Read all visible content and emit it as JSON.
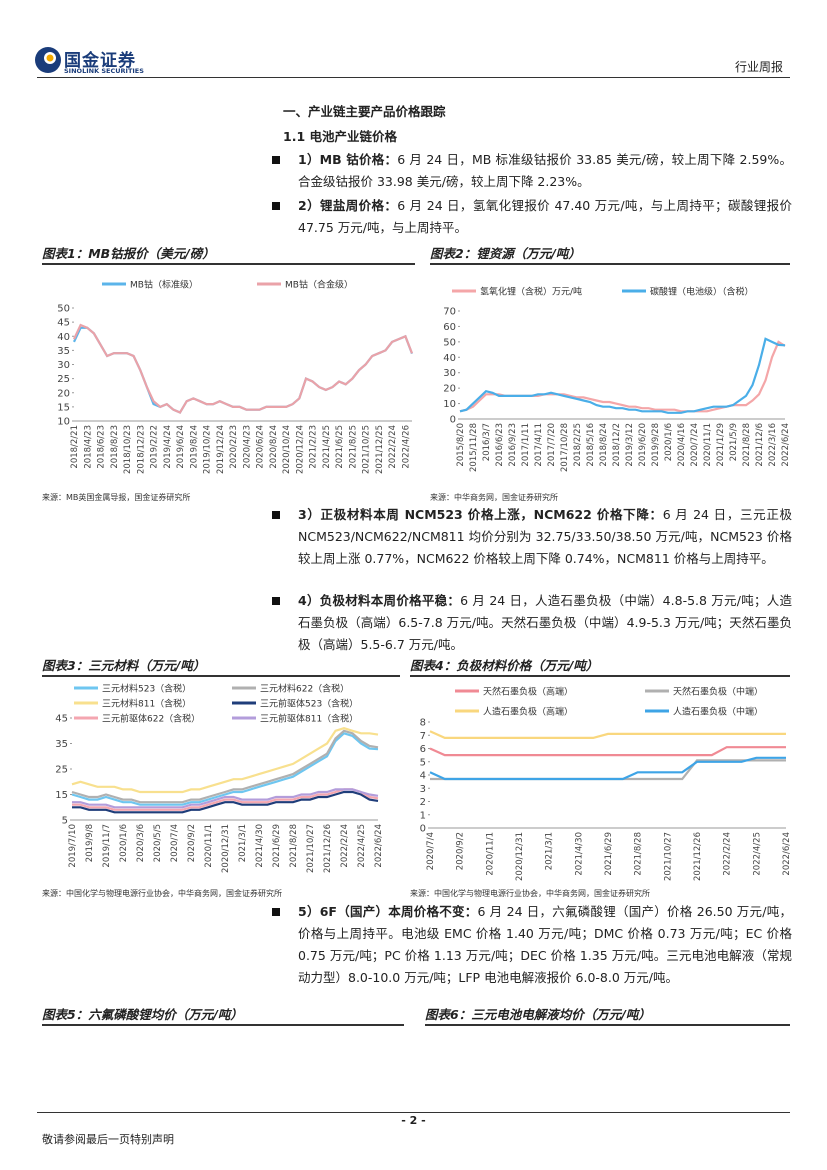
{
  "header": {
    "brand": "国金证券",
    "brand_en": "SINOLINK SECURITIES",
    "report_type": "行业周报"
  },
  "section_title": "一、产业链主要产品价格跟踪",
  "subsection_title": "1.1 电池产业链价格",
  "bullets": [
    {
      "lead": "1）MB 钴价格：",
      "text": "6 月 24 日，MB 标准级钴报价 33.85 美元/磅，较上周下降 2.59%。合金级钴报价 33.98 美元/磅，较上周下降 2.23%。"
    },
    {
      "lead": "2）锂盐周价格：",
      "text": "6 月 24 日，氢氧化锂报价 47.40 万元/吨，与上周持平；碳酸锂报价 47.75 万元/吨，与上周持平。"
    },
    {
      "lead": "3）正极材料本周 NCM523 价格上涨，NCM622 价格下降：",
      "text": "6 月 24 日，三元正极 NCM523/NCM622/NCM811 均价分别为 32.75/33.50/38.50 万元/吨，NCM523 价格较上周上涨 0.77%，NCM622 价格较上周下降 0.74%，NCM811 价格与上周持平。"
    },
    {
      "lead": "4）负极材料本周价格平稳：",
      "text": "6 月 24 日，人造石墨负极（中端）4.8-5.8 万元/吨；人造石墨负极（高端）6.5-7.8 万元/吨。天然石墨负极（中端）4.9-5.3 万元/吨；天然石墨负极（高端）5.5-6.7 万元/吨。"
    },
    {
      "lead": "5）6F（国产）本周价格不变：",
      "text": "6 月 24 日，六氟磷酸锂（国产）价格 26.50 万元/吨，价格与上周持平。电池级 EMC 价格 1.40 万元/吨；DMC 价格 0.73 万元/吨；EC 价格 0.75 万元/吨；PC 价格 1.13 万元/吨；DEC 价格 1.35 万元/吨。三元电池电解液（常规动力型）8.0-10.0 万元/吨；LFP 电池电解液报价 6.0-8.0 万元/吨。"
    }
  ],
  "chart_data": [
    {
      "type": "line",
      "title": "图表1：MB钴报价（美元/磅）",
      "source": "来源：MB英国金属导报，国金证券研究所",
      "categories": [
        "2018/2/21",
        null,
        "2018/4/23",
        null,
        "2018/6/23",
        null,
        "2018/8/23",
        null,
        "2018/10/23",
        null,
        "2018/12/23",
        null,
        "2019/2/22",
        null,
        "2019/4/24",
        null,
        "2019/6/24",
        null,
        "2019/8/24",
        null,
        "2019/10/24",
        null,
        "2019/12/24",
        null,
        "2020/2/23",
        null,
        "2020/4/23",
        null,
        "2020/6/24",
        null,
        "2020/8/24",
        null,
        "2020/10/24",
        null,
        "2020/12/24",
        null,
        "2021/2/23",
        null,
        "2021/4/25",
        null,
        "2021/6/25",
        null,
        "2021/8/25",
        null,
        "2021/10/25",
        null,
        "2021/12/25",
        null,
        "2022/2/24",
        null,
        "2022/4/26",
        null
      ],
      "series": [
        {
          "name": "MB钴（标准级）",
          "color": "#5bb4ea",
          "values": [
            38,
            43,
            43,
            41,
            37,
            33,
            34,
            34,
            34,
            33,
            28,
            22,
            16,
            15,
            16,
            14,
            13,
            17,
            18,
            17,
            16,
            16,
            17,
            16,
            15,
            15,
            14,
            14,
            14,
            15,
            15,
            15,
            15,
            16,
            18,
            25,
            24,
            22,
            21,
            22,
            24,
            23,
            25,
            28,
            30,
            33,
            34,
            35,
            38,
            39,
            40,
            33.85
          ]
        },
        {
          "name": "MB钴（合金级）",
          "color": "#eaa2a8",
          "values": [
            39,
            44,
            43,
            41,
            37,
            33,
            34,
            34,
            34,
            33,
            28,
            22,
            17,
            15,
            16,
            14,
            13,
            17,
            18,
            17,
            16,
            16,
            17,
            16,
            15,
            15,
            14,
            14,
            14,
            15,
            15,
            15,
            15,
            16,
            18,
            25,
            24,
            22,
            21,
            22,
            24,
            23,
            25,
            28,
            30,
            33,
            34,
            35,
            38,
            39,
            40,
            33.98
          ]
        }
      ],
      "ylim": [
        10,
        50
      ],
      "yticks": [
        10,
        15,
        20,
        25,
        30,
        35,
        40,
        45,
        50
      ]
    },
    {
      "type": "line",
      "title": "图表2：锂资源（万元/吨）",
      "source": "来源：中华商务网，国金证券研究所",
      "categories": [
        "2015/8/20",
        null,
        "2015/11/28",
        null,
        "2016/3/7",
        null,
        "2016/6/23",
        null,
        "2016/9/23",
        null,
        "2017/1/11",
        null,
        "2017/4/11",
        null,
        "2017/7/20",
        null,
        "2017/10/28",
        null,
        "2018/2/25",
        null,
        "2018/5/16",
        null,
        "2018/8/24",
        null,
        "2018/12/2",
        null,
        "2019/3/12",
        null,
        "2019/6/20",
        null,
        "2019/9/28",
        null,
        "2020/1/6",
        null,
        "2020/4/16",
        null,
        "2020/7/24",
        null,
        "2020/11/1",
        null,
        "2021/1/29",
        null,
        "2021/5/9",
        null,
        "2021/8/28",
        null,
        "2021/12/6",
        null,
        "2022/3/16",
        null,
        "2022/6/24"
      ],
      "series": [
        {
          "name": "氢氧化锂（含税）万元/吨",
          "color": "#f4a6a8",
          "values": [
            5,
            6,
            8,
            12,
            16,
            16,
            16,
            15,
            15,
            15,
            15,
            15,
            15,
            16,
            16,
            16,
            16,
            15,
            14,
            14,
            13,
            12,
            11,
            11,
            10,
            9,
            8,
            8,
            7,
            7,
            6,
            6,
            6,
            6,
            5,
            5,
            5,
            5,
            5,
            6,
            7,
            8,
            9,
            9,
            9,
            12,
            16,
            25,
            40,
            50,
            47.4
          ]
        },
        {
          "name": "碳酸锂（电池级）（含税）",
          "color": "#4aaee8",
          "values": [
            5,
            6,
            10,
            14,
            18,
            17,
            15,
            15,
            15,
            15,
            15,
            15,
            16,
            16,
            17,
            16,
            15,
            14,
            13,
            12,
            11,
            9,
            8,
            8,
            7,
            7,
            6,
            6,
            5,
            5,
            5,
            5,
            4,
            4,
            4,
            5,
            5,
            6,
            7,
            8,
            8,
            8,
            9,
            12,
            15,
            22,
            35,
            52,
            50,
            48,
            47.75
          ]
        }
      ],
      "ylim": [
        0,
        70
      ],
      "yticks": [
        0,
        10,
        20,
        30,
        40,
        50,
        60,
        70
      ]
    },
    {
      "type": "line",
      "title": "图表3：三元材料（万元/吨）",
      "source": "来源：中国化学与物理电源行业协会，中华商务网，国金证券研究所",
      "categories": [
        "2019/7/10",
        null,
        "2019/9/8",
        null,
        "2019/11/7",
        null,
        "2020/1/6",
        null,
        "2020/3/6",
        null,
        "2020/5/5",
        null,
        "2020/7/4",
        null,
        "2020/9/2",
        null,
        "2020/11/1",
        null,
        "2020/12/31",
        null,
        "2021/3/1",
        null,
        "2021/4/30",
        null,
        "2021/6/29",
        null,
        "2021/8/28",
        null,
        "2021/10/27",
        null,
        "2021/12/26",
        null,
        "2022/2/24",
        null,
        "2022/4/25",
        null,
        "2022/6/24"
      ],
      "series": [
        {
          "name": "三元材料523（含税）",
          "color": "#6ec6f0",
          "values": [
            15,
            14,
            13,
            13,
            14,
            13,
            12,
            12,
            11,
            11,
            11,
            11,
            11,
            11,
            12,
            12,
            13,
            14,
            15,
            16,
            16,
            17,
            18,
            19,
            20,
            21,
            22,
            24,
            26,
            28,
            30,
            36,
            39,
            38,
            35,
            33,
            32.75
          ]
        },
        {
          "name": "三元材料622（含税）",
          "color": "#b0b0b0",
          "values": [
            16,
            15,
            14,
            14,
            15,
            14,
            13,
            13,
            12,
            12,
            12,
            12,
            12,
            12,
            13,
            13,
            14,
            15,
            16,
            17,
            17,
            18,
            19,
            20,
            21,
            22,
            23,
            25,
            27,
            29,
            31,
            37,
            40,
            39,
            36,
            34,
            33.5
          ]
        },
        {
          "name": "三元材料811（含税）",
          "color": "#f8e08e",
          "values": [
            19,
            20,
            19,
            18,
            18,
            18,
            17,
            17,
            16,
            16,
            16,
            16,
            16,
            16,
            17,
            17,
            18,
            19,
            20,
            21,
            21,
            22,
            23,
            24,
            25,
            26,
            27,
            29,
            31,
            33,
            35,
            40,
            41,
            40,
            39,
            39,
            38.5
          ]
        },
        {
          "name": "三元前驱体523（含税）",
          "color": "#1f3d7a",
          "values": [
            10,
            10,
            9,
            9,
            9,
            8,
            8,
            8,
            8,
            8,
            8,
            8,
            8,
            8,
            9,
            9,
            10,
            11,
            12,
            12,
            11,
            11,
            11,
            11,
            12,
            12,
            12,
            13,
            13,
            14,
            14,
            15,
            16,
            16,
            15,
            13,
            12.5
          ]
        },
        {
          "name": "三元前驱体622（含税）",
          "color": "#f4a6b0",
          "values": [
            11,
            11,
            10,
            10,
            10,
            9,
            9,
            9,
            9,
            9,
            9,
            9,
            9,
            9,
            10,
            10,
            11,
            12,
            13,
            13,
            12,
            12,
            12,
            12,
            13,
            13,
            13,
            14,
            14,
            15,
            15,
            16,
            17,
            17,
            16,
            14,
            13.5
          ]
        },
        {
          "name": "三元前驱体811（含税）",
          "color": "#b39ddb",
          "values": [
            12,
            12,
            11,
            11,
            11,
            10,
            10,
            10,
            10,
            10,
            10,
            10,
            10,
            10,
            11,
            11,
            12,
            13,
            14,
            14,
            13,
            13,
            13,
            13,
            14,
            14,
            14,
            15,
            15,
            16,
            16,
            17,
            17,
            17,
            16,
            15,
            14.5
          ]
        }
      ],
      "ylim": [
        5,
        45
      ],
      "yticks": [
        5,
        15,
        25,
        35,
        45
      ]
    },
    {
      "type": "line",
      "title": "图表4：负极材料价格（万元/吨）",
      "source": "来源：中国化学与物理电源行业协会，中华商务网，国金证券研究所",
      "categories": [
        "2020/7/4",
        null,
        "2020/9/2",
        null,
        "2020/11/1",
        null,
        "2020/12/31",
        null,
        "2021/3/1",
        null,
        "2021/4/30",
        null,
        "2021/6/29",
        null,
        "2021/8/28",
        null,
        "2021/10/27",
        null,
        "2021/12/26",
        null,
        "2022/2/24",
        null,
        "2022/4/25",
        null,
        "2022/6/24"
      ],
      "series": [
        {
          "name": "天然石墨负极（高端）",
          "color": "#f08a94",
          "values": [
            6,
            5.5,
            5.5,
            5.5,
            5.5,
            5.5,
            5.5,
            5.5,
            5.5,
            5.5,
            5.5,
            5.5,
            5.5,
            5.5,
            5.5,
            5.5,
            5.5,
            5.5,
            5.5,
            5.5,
            6.1,
            6.1,
            6.1,
            6.1,
            6.1
          ]
        },
        {
          "name": "天然石墨负极（中端）",
          "color": "#b0b0b0",
          "values": [
            3.7,
            3.7,
            3.7,
            3.7,
            3.7,
            3.7,
            3.7,
            3.7,
            3.7,
            3.7,
            3.7,
            3.7,
            3.7,
            3.7,
            3.7,
            3.7,
            3.7,
            3.7,
            5.1,
            5.1,
            5.1,
            5.1,
            5.1,
            5.1,
            5.1
          ]
        },
        {
          "name": "人造石墨负极（高端）",
          "color": "#f9d77e",
          "values": [
            7.3,
            6.8,
            6.8,
            6.8,
            6.8,
            6.8,
            6.8,
            6.8,
            6.8,
            6.8,
            6.8,
            6.8,
            7.1,
            7.1,
            7.1,
            7.1,
            7.1,
            7.1,
            7.1,
            7.1,
            7.1,
            7.1,
            7.1,
            7.1,
            7.1
          ]
        },
        {
          "name": "人造石墨负极（中端）",
          "color": "#3ea4e6",
          "values": [
            4.2,
            3.7,
            3.7,
            3.7,
            3.7,
            3.7,
            3.7,
            3.7,
            3.7,
            3.7,
            3.7,
            3.7,
            3.7,
            3.7,
            4.2,
            4.2,
            4.2,
            4.2,
            5,
            5,
            5,
            5,
            5.3,
            5.3,
            5.3
          ]
        }
      ],
      "ylim": [
        0,
        8
      ],
      "yticks": [
        0,
        1,
        2,
        3,
        4,
        5,
        6,
        7,
        8
      ]
    }
  ],
  "next_figures": [
    "图表5：六氟磷酸锂均价（万元/吨）",
    "图表6：三元电池电解液均价（万元/吨）"
  ],
  "footer": {
    "page": "- 2 -",
    "disclaimer": "敬请参阅最后一页特别声明"
  }
}
